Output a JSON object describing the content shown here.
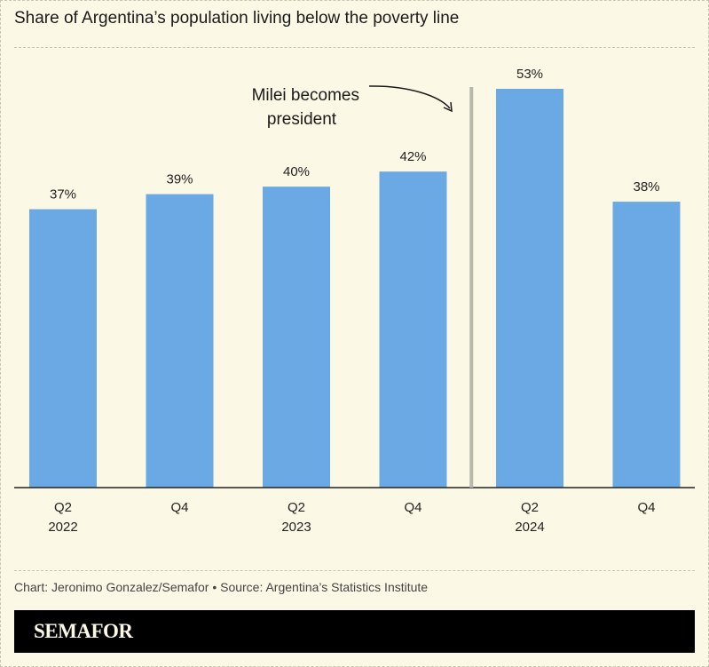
{
  "title": "Share of Argentina’s population living below the poverty line",
  "credit": "Chart: Jeronimo Gonzalez/Semafor • Source: Argentina’s Statistics Institute",
  "logo": "SEMAFOR",
  "chart_data": {
    "type": "bar",
    "categories": [
      [
        "Q2",
        "2022"
      ],
      [
        "Q4",
        ""
      ],
      [
        "Q2",
        "2023"
      ],
      [
        "Q4",
        ""
      ],
      [
        "Q2",
        "2024"
      ],
      [
        "Q4",
        ""
      ]
    ],
    "values": [
      37,
      39,
      40,
      42,
      53,
      38
    ],
    "value_labels": [
      "37%",
      "39%",
      "40%",
      "42%",
      "53%",
      "38%"
    ],
    "ylim": [
      0,
      53
    ],
    "grid": false,
    "bar_color": "#6aa9e3",
    "annotation": {
      "lines": [
        "Milei becomes",
        "president"
      ],
      "after_category_index": 3,
      "line_color": "#b9b7ae"
    }
  }
}
